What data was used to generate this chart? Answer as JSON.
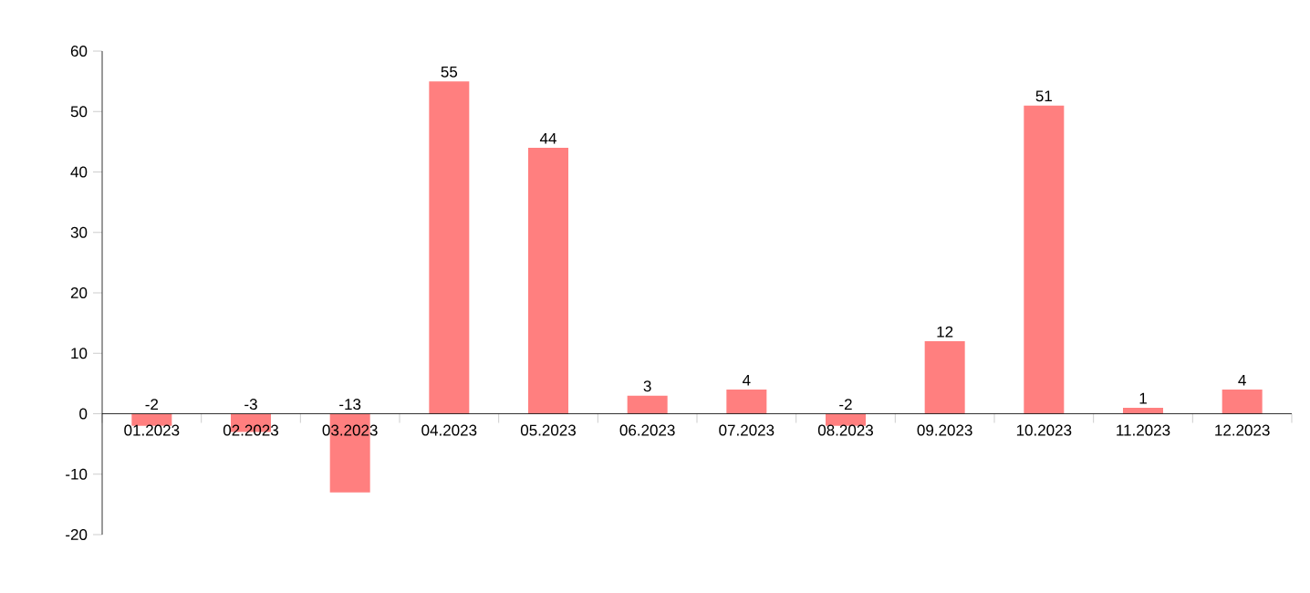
{
  "chart_data": {
    "type": "bar",
    "categories": [
      "01.2023",
      "02.2023",
      "03.2023",
      "04.2023",
      "05.2023",
      "06.2023",
      "07.2023",
      "08.2023",
      "09.2023",
      "10.2023",
      "11.2023",
      "12.2023"
    ],
    "values": [
      -2,
      -3,
      -13,
      55,
      44,
      3,
      4,
      -2,
      12,
      51,
      1,
      4
    ],
    "color": "#ff7f7f",
    "ylim": [
      -20,
      60
    ],
    "yticks": [
      -20,
      -10,
      0,
      10,
      20,
      30,
      40,
      50,
      60
    ],
    "data_labels": true,
    "grid": false
  }
}
